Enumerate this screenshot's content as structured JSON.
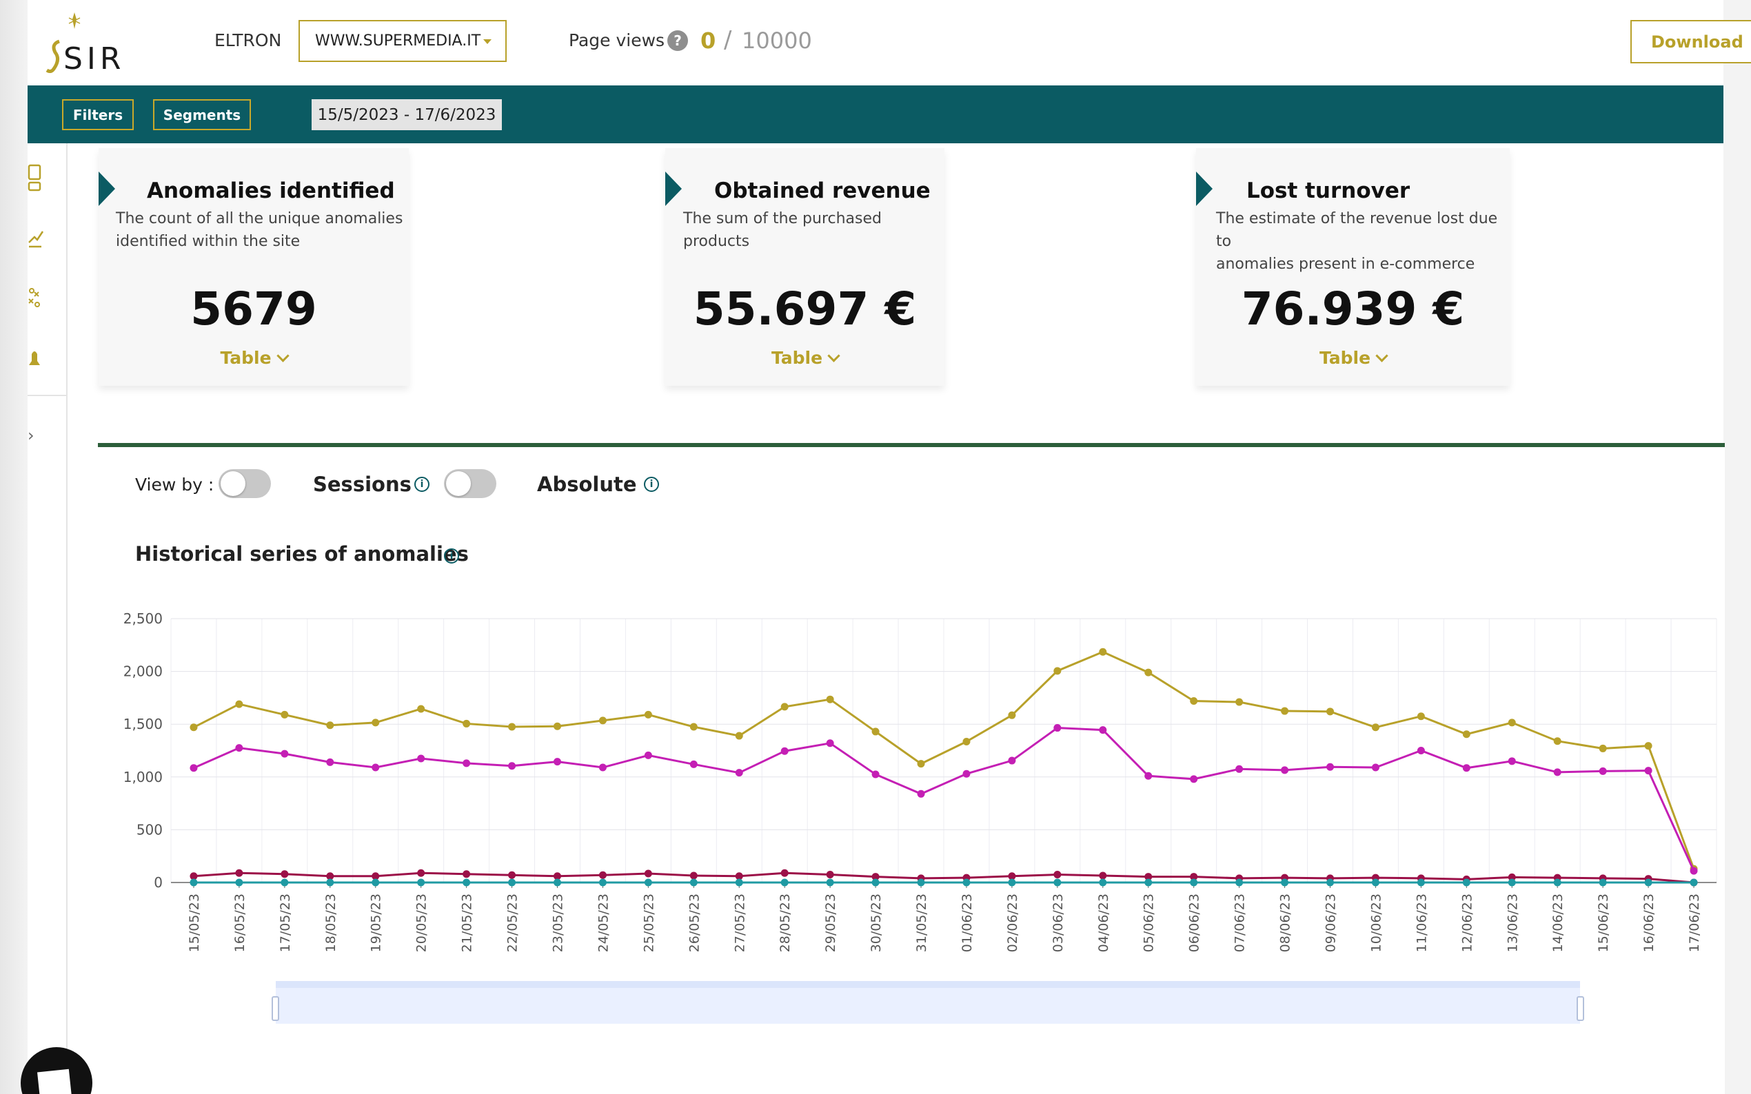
{
  "header": {
    "logo_text": "SIRIO",
    "org_name": "ELTRON",
    "site_select": "WWW.SUPERMEDIA.IT",
    "page_views_label": "Page views",
    "page_views_help": "?",
    "page_views_count": "0",
    "page_views_separator": "/",
    "page_views_limit": "10000",
    "download_label": "Download"
  },
  "toolbar": {
    "filters_label": "Filters",
    "segments_label": "Segments",
    "date_range": "15/5/2023 - 17/6/2023"
  },
  "sidebar": {
    "icons": [
      "dashboard-icon",
      "trend-chart-icon",
      "anomaly-icon",
      "bell-icon"
    ],
    "expand_glyph": "›"
  },
  "cards": [
    {
      "title": "Anomalies identified",
      "desc_line1": "The count of all the unique anomalies",
      "desc_line2": "identified within the site",
      "value": "5679",
      "toggle_label": "Table"
    },
    {
      "title": "Obtained revenue",
      "desc_line1": "The sum of the purchased products",
      "desc_line2": "",
      "value": "55.697 €",
      "toggle_label": "Table"
    },
    {
      "title": "Lost turnover",
      "desc_line1": "The estimate of the revenue lost due to",
      "desc_line2": "anomalies present in e-commerce",
      "value": "76.939 €",
      "toggle_label": "Table"
    }
  ],
  "panel": {
    "view_by_label": "View by :",
    "sessions_label": "Sessions",
    "absolute_label": "Absolute",
    "info_glyph": "i",
    "chart_title": "Historical series of anomalies"
  },
  "colors": {
    "accent": "#b8a12a",
    "teal": "#0b5b63",
    "series_gold": "#b8a12a",
    "series_magenta": "#c41fb4",
    "series_crimson": "#9c1048",
    "series_teal": "#1f9aa3"
  },
  "chart_data": {
    "type": "line",
    "title": "Historical series of anomalies",
    "xlabel": "",
    "ylabel": "",
    "ylim": [
      0,
      2500
    ],
    "yticks": [
      "0",
      "500",
      "1,000",
      "1,500",
      "2,000",
      "2,500"
    ],
    "x": [
      "15/05/23",
      "16/05/23",
      "17/05/23",
      "18/05/23",
      "19/05/23",
      "20/05/23",
      "21/05/23",
      "22/05/23",
      "23/05/23",
      "24/05/23",
      "25/05/23",
      "26/05/23",
      "27/05/23",
      "28/05/23",
      "29/05/23",
      "30/05/23",
      "31/05/23",
      "01/06/23",
      "02/06/23",
      "03/06/23",
      "04/06/23",
      "05/06/23",
      "06/06/23",
      "07/06/23",
      "08/06/23",
      "09/06/23",
      "10/06/23",
      "11/06/23",
      "12/06/23",
      "13/06/23",
      "14/06/23",
      "15/06/23",
      "16/06/23",
      "17/06/23"
    ],
    "grid": true,
    "series": [
      {
        "color": "#b8a12a",
        "values": [
          1470,
          1690,
          1590,
          1490,
          1515,
          1645,
          1505,
          1475,
          1480,
          1535,
          1590,
          1475,
          1390,
          1665,
          1735,
          1430,
          1125,
          1335,
          1585,
          2005,
          2185,
          1990,
          1720,
          1710,
          1625,
          1620,
          1470,
          1575,
          1405,
          1515,
          1340,
          1270,
          1295,
          130
        ]
      },
      {
        "color": "#c41fb4",
        "values": [
          1085,
          1275,
          1220,
          1140,
          1090,
          1175,
          1130,
          1105,
          1145,
          1090,
          1205,
          1120,
          1040,
          1245,
          1320,
          1025,
          840,
          1030,
          1155,
          1465,
          1445,
          1010,
          980,
          1075,
          1065,
          1095,
          1090,
          1250,
          1085,
          1150,
          1045,
          1055,
          1060,
          110
        ]
      },
      {
        "color": "#9c1048",
        "values": [
          60,
          90,
          80,
          60,
          60,
          90,
          80,
          70,
          60,
          70,
          85,
          65,
          60,
          90,
          75,
          55,
          40,
          45,
          60,
          75,
          65,
          55,
          55,
          40,
          45,
          40,
          45,
          40,
          30,
          50,
          45,
          40,
          35,
          0
        ]
      },
      {
        "color": "#1f9aa3",
        "values": [
          0,
          0,
          0,
          0,
          0,
          0,
          0,
          0,
          0,
          0,
          0,
          0,
          0,
          0,
          0,
          0,
          0,
          0,
          0,
          0,
          0,
          0,
          0,
          0,
          0,
          0,
          0,
          0,
          0,
          0,
          0,
          0,
          0,
          0
        ]
      }
    ]
  }
}
